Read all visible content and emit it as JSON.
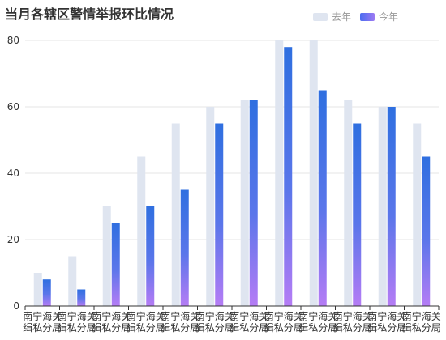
{
  "chart_data": {
    "type": "bar",
    "title": "当月各辖区警情举报环比情况",
    "categories": [
      "南宁海关缉私分局",
      "南宁海关缉私分局",
      "南宁海关缉私分局",
      "南宁海关缉私分局",
      "南宁海关缉私分局",
      "南宁海关缉私分局",
      "南宁海关缉私分局",
      "南宁海关缉私分局",
      "南宁海关缉私分局",
      "南宁海关缉私分局",
      "南宁海关缉私分局",
      "南宁海关缉私分局"
    ],
    "category_lines": [
      [
        "南宁海关",
        "缉私分局"
      ],
      [
        "南宁海关",
        "缉私分局"
      ],
      [
        "南宁海关",
        "缉私分局"
      ],
      [
        "南宁海关",
        "缉私分局"
      ],
      [
        "南宁海关",
        "缉私分局"
      ],
      [
        "南宁海关",
        "缉私分局"
      ],
      [
        "南宁海关",
        "缉私分局"
      ],
      [
        "南宁海关",
        "缉私分局"
      ],
      [
        "南宁海关",
        "缉私分局"
      ],
      [
        "南宁海关",
        "缉私分局"
      ],
      [
        "南宁海关",
        "缉私分局"
      ],
      [
        "南宁海关",
        "缉私分局"
      ]
    ],
    "series": [
      {
        "name": "去年",
        "values": [
          10,
          15,
          30,
          45,
          55,
          60,
          62,
          80,
          80,
          62,
          60,
          55
        ]
      },
      {
        "name": "今年",
        "values": [
          8,
          5,
          25,
          30,
          35,
          55,
          62,
          78,
          65,
          55,
          60,
          45
        ]
      }
    ],
    "ylim": [
      0,
      80
    ],
    "yticks": [
      0,
      20,
      40,
      60,
      80
    ],
    "legend_position": "top-right",
    "grid": true,
    "colors": {
      "last_year": "#dfe5f0",
      "this_year_top": "#2f6fe0",
      "this_year_bottom": "#b57cf5",
      "grid": "#e6e6e6",
      "axis": "#333333"
    }
  }
}
